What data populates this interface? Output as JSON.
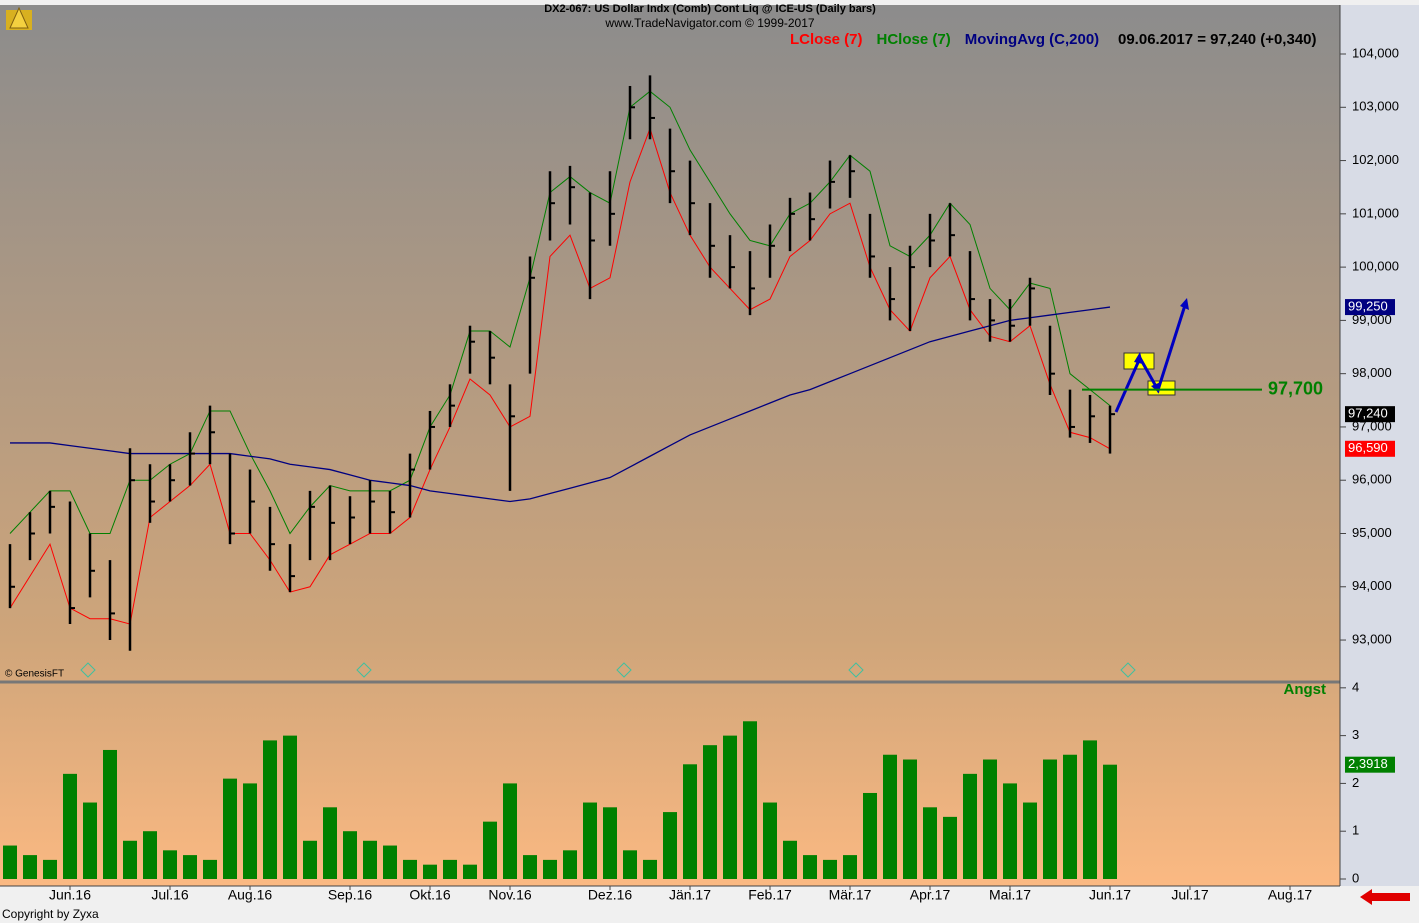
{
  "chart_data": [
    {
      "type": "ohlc",
      "title": "DX2-067:  US Dollar Indx (Comb) Cont Liq @ ICE-US  (Daily bars)",
      "subtitle": "www.TradeNavigator.com © 1999-2017",
      "readout": "09.06.2017 = 97,240 (+0,340)",
      "source": "© GenesisFT",
      "ylim": [
        92.25,
        104.92
      ],
      "yticks": [
        {
          "value": 93,
          "label": "93,000"
        },
        {
          "value": 94,
          "label": "94,000"
        },
        {
          "value": 95,
          "label": "95,000"
        },
        {
          "value": 96,
          "label": "96,000"
        },
        {
          "value": 97,
          "label": "97,000"
        },
        {
          "value": 98,
          "label": "98,000"
        },
        {
          "value": 99,
          "label": "99,000"
        },
        {
          "value": 100,
          "label": "100,000"
        },
        {
          "value": 101,
          "label": "101,000"
        },
        {
          "value": 102,
          "label": "102,000"
        },
        {
          "value": 103,
          "label": "103,000"
        },
        {
          "value": 104,
          "label": "104,000"
        }
      ],
      "bars": {
        "color": "#000000",
        "high": [
          94.8,
          95.4,
          95.8,
          95.6,
          95.0,
          94.5,
          96.6,
          96.3,
          96.3,
          96.9,
          97.4,
          96.5,
          96.2,
          95.5,
          94.8,
          95.8,
          95.9,
          95.7,
          96.0,
          95.8,
          96.5,
          97.3,
          97.8,
          98.9,
          98.8,
          97.8,
          100.2,
          101.8,
          101.9,
          101.4,
          101.8,
          103.4,
          103.6,
          102.6,
          102.0,
          101.2,
          100.6,
          100.3,
          100.8,
          101.3,
          101.4,
          102.0,
          102.1,
          101.0,
          100.0,
          100.4,
          101.0,
          101.2,
          100.3,
          99.4,
          99.4,
          99.8,
          98.9,
          97.7,
          97.6,
          97.4
        ],
        "low": [
          93.6,
          94.5,
          95.0,
          93.3,
          93.8,
          93.0,
          92.8,
          95.2,
          95.6,
          95.9,
          96.3,
          94.8,
          95.0,
          94.3,
          93.9,
          94.5,
          94.5,
          94.8,
          95.0,
          95.0,
          95.3,
          96.2,
          97.0,
          98.0,
          97.8,
          95.8,
          98.0,
          100.5,
          100.8,
          99.4,
          100.4,
          102.4,
          102.4,
          101.2,
          100.6,
          99.8,
          99.6,
          99.1,
          99.8,
          100.3,
          100.5,
          101.1,
          101.3,
          99.8,
          99.0,
          98.8,
          100.0,
          100.2,
          99.0,
          98.6,
          98.6,
          98.9,
          97.6,
          96.8,
          96.7,
          96.5
        ],
        "close": [
          94.0,
          95.0,
          95.5,
          93.6,
          94.3,
          93.5,
          96.0,
          95.6,
          96.0,
          96.5,
          96.9,
          95.0,
          95.6,
          94.8,
          94.2,
          95.5,
          95.2,
          95.3,
          95.6,
          95.4,
          96.2,
          97.0,
          97.4,
          98.6,
          98.3,
          97.2,
          99.8,
          101.2,
          101.5,
          100.5,
          101.0,
          103.0,
          102.8,
          101.8,
          101.2,
          100.4,
          100.0,
          99.6,
          100.4,
          101.0,
          100.9,
          101.6,
          101.8,
          100.2,
          99.4,
          100.0,
          100.5,
          100.6,
          99.4,
          99.0,
          98.9,
          99.6,
          98.0,
          97.0,
          97.2,
          97.24
        ],
        "value_labels": [
          null,
          null,
          null,
          null,
          null,
          null,
          null,
          null,
          null,
          null,
          null,
          null,
          null,
          null,
          null,
          null,
          null,
          null,
          null,
          null,
          null,
          null,
          null,
          null,
          null,
          null,
          null,
          null,
          null,
          null,
          null,
          null,
          null,
          null,
          null,
          null,
          null,
          null,
          null,
          null,
          null,
          null,
          null,
          null,
          null,
          null,
          null,
          null,
          null,
          null,
          null,
          null,
          null,
          null,
          null,
          "97,240"
        ]
      },
      "series": [
        {
          "name": "LClose (7)",
          "color": "#ff0000",
          "values": [
            93.6,
            94.2,
            94.8,
            93.6,
            93.4,
            93.4,
            93.3,
            95.3,
            95.6,
            95.9,
            96.3,
            95.0,
            95.0,
            94.5,
            93.9,
            94.0,
            94.6,
            94.8,
            95.0,
            95.0,
            95.3,
            96.2,
            97.0,
            97.9,
            97.6,
            97.0,
            97.2,
            100.2,
            100.6,
            99.6,
            99.8,
            101.6,
            102.6,
            101.4,
            100.6,
            100.0,
            99.6,
            99.2,
            99.4,
            100.2,
            100.5,
            101.0,
            101.2,
            100.0,
            99.2,
            98.8,
            99.8,
            100.2,
            99.2,
            98.7,
            98.6,
            98.9,
            97.8,
            96.9,
            96.8,
            96.59
          ],
          "value_labels": [
            null,
            null,
            null,
            null,
            null,
            null,
            null,
            null,
            null,
            null,
            null,
            null,
            null,
            null,
            null,
            null,
            null,
            null,
            null,
            null,
            null,
            null,
            null,
            null,
            null,
            null,
            null,
            null,
            null,
            null,
            null,
            null,
            null,
            null,
            null,
            null,
            null,
            null,
            null,
            null,
            null,
            null,
            null,
            null,
            null,
            null,
            null,
            null,
            null,
            null,
            null,
            null,
            null,
            null,
            null,
            "96,590"
          ]
        },
        {
          "name": "HClose (7)",
          "color": "#008000",
          "values": [
            95.0,
            95.4,
            95.8,
            95.8,
            95.0,
            95.0,
            96.0,
            96.0,
            96.3,
            96.5,
            97.3,
            97.3,
            96.5,
            95.8,
            95.0,
            95.5,
            95.9,
            95.8,
            95.8,
            95.8,
            96.0,
            97.0,
            97.6,
            98.8,
            98.8,
            98.5,
            99.8,
            101.4,
            101.7,
            101.4,
            101.2,
            103.0,
            103.3,
            103.0,
            102.2,
            101.6,
            101.0,
            100.5,
            100.4,
            101.0,
            101.2,
            101.6,
            102.1,
            101.8,
            100.4,
            100.2,
            100.6,
            101.2,
            100.8,
            99.6,
            99.2,
            99.7,
            99.6,
            98.0,
            97.7,
            97.4
          ]
        },
        {
          "name": "MovingAvg (C,200)",
          "color": "#000080",
          "values": [
            96.7,
            96.7,
            96.7,
            96.65,
            96.6,
            96.55,
            96.5,
            96.5,
            96.5,
            96.5,
            96.5,
            96.5,
            96.45,
            96.4,
            96.3,
            96.25,
            96.2,
            96.1,
            96.0,
            95.95,
            95.9,
            95.8,
            95.75,
            95.7,
            95.65,
            95.6,
            95.65,
            95.75,
            95.85,
            95.95,
            96.05,
            96.25,
            96.45,
            96.65,
            96.85,
            97.0,
            97.15,
            97.3,
            97.45,
            97.6,
            97.7,
            97.85,
            98.0,
            98.15,
            98.3,
            98.45,
            98.6,
            98.7,
            98.8,
            98.9,
            99.0,
            99.05,
            99.1,
            99.15,
            99.2,
            99.25
          ],
          "value_labels": [
            null,
            null,
            null,
            null,
            null,
            null,
            null,
            null,
            null,
            null,
            null,
            null,
            null,
            null,
            null,
            null,
            null,
            null,
            null,
            null,
            null,
            null,
            null,
            null,
            null,
            null,
            null,
            null,
            null,
            null,
            null,
            null,
            null,
            null,
            null,
            null,
            null,
            null,
            null,
            null,
            null,
            null,
            null,
            null,
            null,
            null,
            null,
            null,
            null,
            null,
            null,
            null,
            null,
            null,
            null,
            "99,250"
          ]
        }
      ],
      "level": {
        "value": 97.7,
        "label": "97,700",
        "color": "#008000"
      }
    },
    {
      "type": "bar",
      "title": "Angst",
      "footer": "Copyright by Zyxa",
      "color": "#008000",
      "categories": [
        null,
        null,
        null,
        "Jun.16",
        null,
        null,
        null,
        null,
        "Jul.16",
        null,
        null,
        null,
        "Aug.16",
        null,
        null,
        null,
        null,
        "Sep.16",
        null,
        null,
        null,
        "Okt.16",
        null,
        null,
        null,
        "Nov.16",
        null,
        null,
        null,
        null,
        "Dez.16",
        null,
        null,
        null,
        "Jän.17",
        null,
        null,
        null,
        "Feb.17",
        null,
        null,
        null,
        "Mär.17",
        null,
        null,
        null,
        "Apr.17",
        null,
        null,
        null,
        "Mai.17",
        null,
        null,
        null,
        null,
        "Jun.17",
        null,
        null,
        null,
        "Jul.17",
        null,
        null,
        null,
        null,
        "Aug.17",
        null,
        null
      ],
      "values": [
        0.7,
        0.5,
        0.4,
        2.2,
        1.6,
        2.7,
        0.8,
        1.0,
        0.6,
        0.5,
        0.4,
        2.1,
        2.0,
        2.9,
        3.0,
        0.8,
        1.5,
        1.0,
        0.8,
        0.7,
        0.4,
        0.3,
        0.4,
        0.3,
        1.2,
        2.0,
        0.5,
        0.4,
        0.6,
        1.6,
        1.5,
        0.6,
        0.4,
        1.4,
        2.4,
        2.8,
        3.0,
        3.3,
        1.6,
        0.8,
        0.5,
        0.4,
        0.5,
        1.8,
        2.6,
        2.5,
        1.5,
        1.3,
        2.2,
        2.5,
        2.0,
        1.6,
        2.5,
        2.6,
        2.9,
        2.3918,
        null,
        null,
        null,
        null,
        null,
        null,
        null,
        null,
        null,
        null,
        null
      ],
      "value_labels": [
        null,
        null,
        null,
        null,
        null,
        null,
        null,
        null,
        null,
        null,
        null,
        null,
        null,
        null,
        null,
        null,
        null,
        null,
        null,
        null,
        null,
        null,
        null,
        null,
        null,
        null,
        null,
        null,
        null,
        null,
        null,
        null,
        null,
        null,
        null,
        null,
        null,
        null,
        null,
        null,
        null,
        null,
        null,
        null,
        null,
        null,
        null,
        null,
        null,
        null,
        null,
        null,
        null,
        null,
        null,
        "2,3918",
        null,
        null,
        null,
        null,
        null,
        null,
        null,
        null,
        null,
        null,
        null
      ],
      "ylim": [
        0,
        4.08
      ],
      "yticks": [
        0,
        1,
        2,
        3,
        4
      ]
    }
  ]
}
